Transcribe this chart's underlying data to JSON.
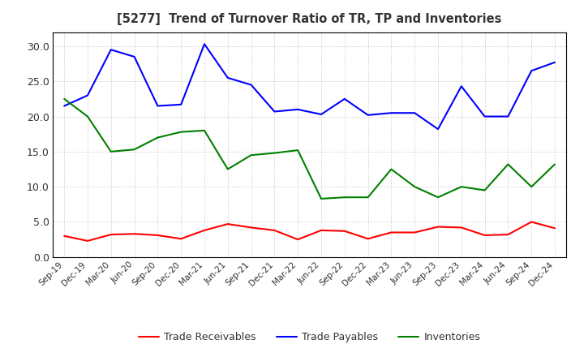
{
  "title": "[5277]  Trend of Turnover Ratio of TR, TP and Inventories",
  "x_labels": [
    "Sep-19",
    "Dec-19",
    "Mar-20",
    "Jun-20",
    "Sep-20",
    "Dec-20",
    "Mar-21",
    "Jun-21",
    "Sep-21",
    "Dec-21",
    "Mar-22",
    "Jun-22",
    "Sep-22",
    "Dec-22",
    "Mar-23",
    "Jun-23",
    "Sep-23",
    "Dec-23",
    "Mar-24",
    "Jun-24",
    "Sep-24",
    "Dec-24"
  ],
  "trade_receivables": [
    3.0,
    2.3,
    3.2,
    3.3,
    3.1,
    2.6,
    3.8,
    4.7,
    4.2,
    3.8,
    2.5,
    3.8,
    3.7,
    2.6,
    3.5,
    3.5,
    4.3,
    4.2,
    3.1,
    3.2,
    5.0,
    4.1
  ],
  "trade_payables": [
    21.5,
    23.0,
    29.5,
    28.5,
    21.5,
    21.7,
    30.3,
    25.5,
    24.5,
    20.7,
    21.0,
    20.3,
    22.5,
    20.2,
    20.5,
    20.5,
    18.2,
    24.3,
    20.0,
    20.0,
    26.5,
    27.7
  ],
  "inventories": [
    22.5,
    20.0,
    15.0,
    15.3,
    17.0,
    17.8,
    18.0,
    12.5,
    14.5,
    14.8,
    15.2,
    8.3,
    8.5,
    8.5,
    12.5,
    10.0,
    8.5,
    10.0,
    9.5,
    13.2,
    10.0,
    13.2
  ],
  "ylim": [
    0.0,
    32.0
  ],
  "yticks": [
    0.0,
    5.0,
    10.0,
    15.0,
    20.0,
    25.0,
    30.0
  ],
  "colors": {
    "trade_receivables": "#ff0000",
    "trade_payables": "#0000ff",
    "inventories": "#008000"
  },
  "legend_labels": [
    "Trade Receivables",
    "Trade Payables",
    "Inventories"
  ],
  "background_color": "#ffffff",
  "plot_bg_color": "#ffffff",
  "grid_color": "#bbbbbb",
  "title_color": "#333333",
  "tick_color": "#333333"
}
